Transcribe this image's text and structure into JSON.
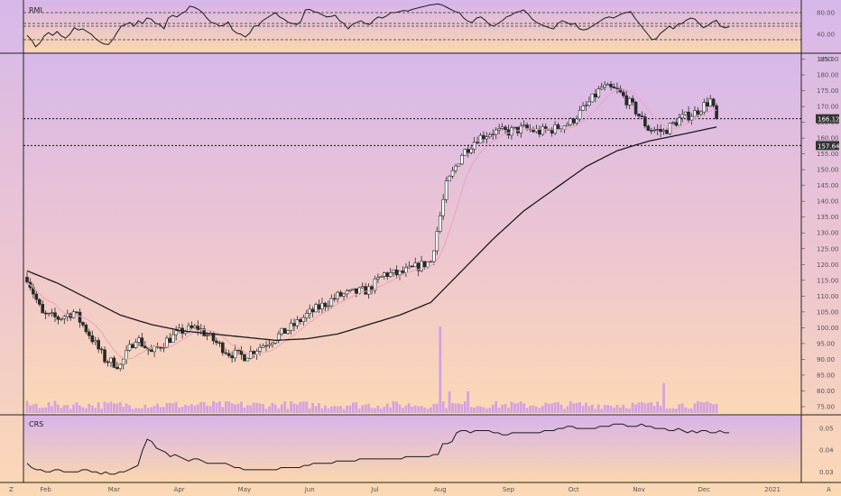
{
  "rmi": {
    "title": "RMI",
    "ticks": [
      {
        "v": 80,
        "label": "80.00"
      },
      {
        "v": 40,
        "label": "40.00"
      }
    ],
    "levels": [
      80,
      60,
      55,
      30
    ],
    "yrange": [
      10,
      95
    ],
    "values": [
      38,
      30,
      17,
      24,
      37,
      43,
      38,
      45,
      37,
      33,
      40,
      52,
      48,
      50,
      45,
      40,
      32,
      26,
      22,
      21,
      30,
      43,
      55,
      58,
      62,
      55,
      65,
      60,
      70,
      68,
      60,
      58,
      50,
      70,
      75,
      72,
      78,
      82,
      92,
      90,
      86,
      80,
      70,
      62,
      60,
      55,
      57,
      63,
      48,
      42,
      40,
      35,
      42,
      55,
      56,
      65,
      70,
      75,
      80,
      72,
      68,
      62,
      60,
      58,
      64,
      85,
      86,
      82,
      80,
      76,
      72,
      73,
      75,
      65,
      60,
      50,
      58,
      62,
      65,
      60,
      58,
      66,
      72,
      70,
      74,
      80,
      80,
      82,
      84,
      83,
      86,
      88,
      90,
      92,
      94,
      95,
      96,
      94,
      90,
      86,
      82,
      80,
      70,
      64,
      62,
      70,
      72,
      66,
      58,
      55,
      60,
      65,
      72,
      75,
      80,
      82,
      85,
      78,
      68,
      62,
      58,
      55,
      52,
      50,
      60,
      65,
      62,
      58,
      60,
      50,
      48,
      50,
      55,
      60,
      65,
      70,
      72,
      70,
      74,
      78,
      80,
      82,
      70,
      60,
      50,
      40,
      30,
      32,
      42,
      48,
      55,
      50,
      58,
      60,
      66,
      70,
      68,
      60,
      52,
      56,
      62,
      66,
      55,
      52,
      54
    ]
  },
  "main": {
    "currency": "USD",
    "ylim": [
      73,
      186
    ],
    "ticks": [
      {
        "v": 185,
        "label": "185.00"
      },
      {
        "v": 180,
        "label": "180.00"
      },
      {
        "v": 175,
        "label": "175.00"
      },
      {
        "v": 170,
        "label": "170.00"
      },
      {
        "v": 165,
        "label": "165.00"
      },
      {
        "v": 160,
        "label": "160.00"
      },
      {
        "v": 155,
        "label": "155.00"
      },
      {
        "v": 150,
        "label": "150.00"
      },
      {
        "v": 145,
        "label": "145.00"
      },
      {
        "v": 140,
        "label": "140.00"
      },
      {
        "v": 135,
        "label": "135.00"
      },
      {
        "v": 130,
        "label": "130.00"
      },
      {
        "v": 125,
        "label": "125.00"
      },
      {
        "v": 120,
        "label": "120.00"
      },
      {
        "v": 115,
        "label": "115.00"
      },
      {
        "v": 110,
        "label": "110.00"
      },
      {
        "v": 105,
        "label": "105.00"
      },
      {
        "v": 100,
        "label": "100.00"
      },
      {
        "v": 95,
        "label": "95.00"
      },
      {
        "v": 90,
        "label": "90.00"
      },
      {
        "v": 85,
        "label": "85.00"
      },
      {
        "v": 80,
        "label": "80.00"
      },
      {
        "v": 75,
        "label": "75.00"
      }
    ],
    "hlines": [
      {
        "v": 166.12,
        "label": "166.12"
      },
      {
        "v": 157.64,
        "label": "157.64"
      }
    ],
    "last_price": "166.12"
  },
  "crs": {
    "title": "CRS",
    "ticks": [
      {
        "v": 0.05,
        "label": "0.05"
      },
      {
        "v": 0.04,
        "label": "0.04"
      },
      {
        "v": 0.03,
        "label": "0.03"
      }
    ],
    "yrange": [
      0.026,
      0.055
    ],
    "values": [
      0.034,
      0.032,
      0.031,
      0.031,
      0.03,
      0.03,
      0.031,
      0.031,
      0.03,
      0.03,
      0.03,
      0.03,
      0.031,
      0.031,
      0.03,
      0.03,
      0.029,
      0.03,
      0.029,
      0.029,
      0.03,
      0.03,
      0.031,
      0.032,
      0.033,
      0.04,
      0.045,
      0.044,
      0.041,
      0.04,
      0.039,
      0.037,
      0.038,
      0.037,
      0.036,
      0.035,
      0.036,
      0.036,
      0.035,
      0.034,
      0.034,
      0.034,
      0.034,
      0.034,
      0.033,
      0.032,
      0.032,
      0.031,
      0.031,
      0.031,
      0.031,
      0.031,
      0.031,
      0.031,
      0.031,
      0.032,
      0.032,
      0.032,
      0.032,
      0.032,
      0.033,
      0.033,
      0.034,
      0.034,
      0.034,
      0.034,
      0.034,
      0.035,
      0.035,
      0.035,
      0.035,
      0.035,
      0.036,
      0.036,
      0.036,
      0.036,
      0.036,
      0.036,
      0.036,
      0.036,
      0.036,
      0.036,
      0.037,
      0.037,
      0.037,
      0.037,
      0.037,
      0.037,
      0.038,
      0.038,
      0.043,
      0.043,
      0.044,
      0.048,
      0.049,
      0.049,
      0.048,
      0.049,
      0.049,
      0.049,
      0.049,
      0.048,
      0.048,
      0.047,
      0.047,
      0.048,
      0.048,
      0.048,
      0.048,
      0.048,
      0.048,
      0.048,
      0.049,
      0.049,
      0.049,
      0.05,
      0.05,
      0.051,
      0.051,
      0.05,
      0.05,
      0.05,
      0.05,
      0.05,
      0.051,
      0.051,
      0.051,
      0.052,
      0.052,
      0.052,
      0.051,
      0.051,
      0.051,
      0.052,
      0.051,
      0.051,
      0.05,
      0.05,
      0.05,
      0.049,
      0.049,
      0.05,
      0.049,
      0.048,
      0.049,
      0.048,
      0.049,
      0.049,
      0.048,
      0.048,
      0.049,
      0.048,
      0.048
    ]
  },
  "xaxis": {
    "labels": [
      {
        "label": "Feb",
        "i": 6
      },
      {
        "label": "Mar",
        "i": 28
      },
      {
        "label": "Apr",
        "i": 49
      },
      {
        "label": "May",
        "i": 70
      },
      {
        "label": "Jun",
        "i": 91
      },
      {
        "label": "Jul",
        "i": 112
      },
      {
        "label": "Aug",
        "i": 133
      },
      {
        "label": "Sep",
        "i": 155
      },
      {
        "label": "Oct",
        "i": 176
      },
      {
        "label": "Nov",
        "i": 197
      },
      {
        "label": "Dec",
        "i": 218
      },
      {
        "label": "2021",
        "i": 240
      }
    ],
    "left_corner": "Z",
    "right_corner": "A"
  },
  "colors": {
    "candle_up": "#ffffff",
    "candle_down": "#2a2a2a",
    "wick": "#2a2a2a",
    "ma_long": "#1a1a1a",
    "ma_short": "#e7a6b8",
    "volume": "#cc99e8",
    "hline": "#111111",
    "pane_border": "#222222"
  }
}
